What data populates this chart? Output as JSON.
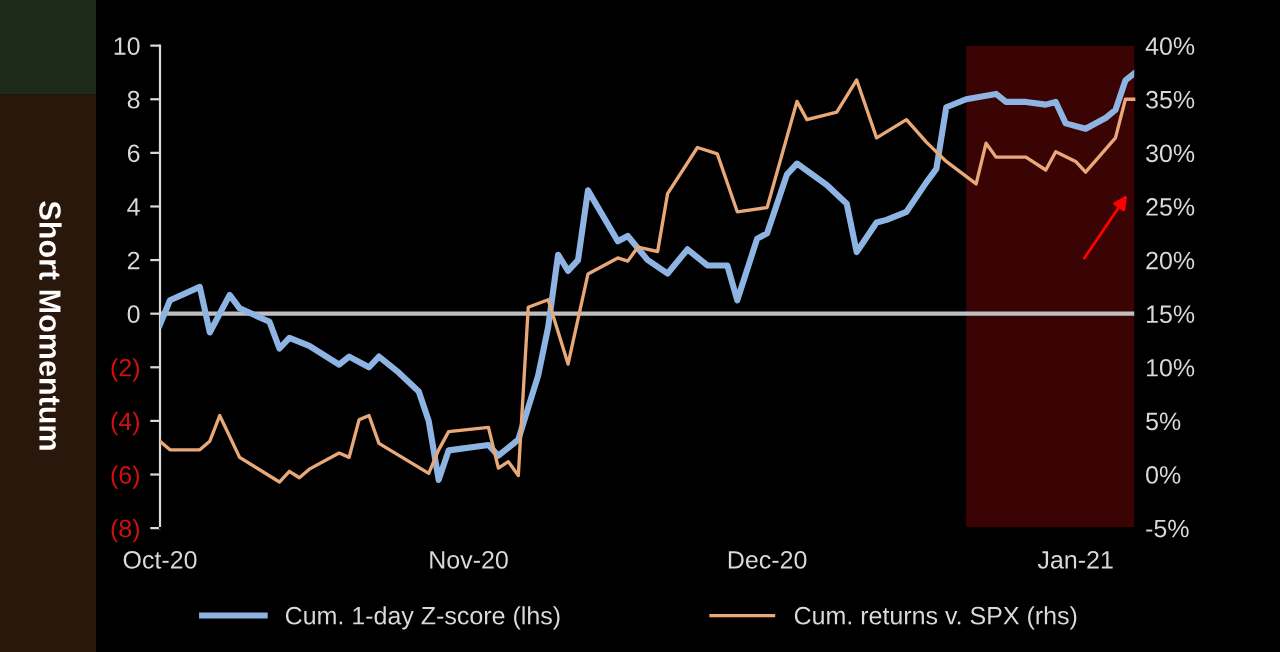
{
  "chart_data": {
    "type": "line",
    "ylabel": "Short Momentum",
    "xlim": [
      "2020-10-01",
      "2021-01-07"
    ],
    "xticks": [
      {
        "value": "2020-10-01",
        "label": "Oct-20"
      },
      {
        "value": "2020-11-01",
        "label": "Nov-20"
      },
      {
        "value": "2020-12-01",
        "label": "Dec-20"
      },
      {
        "value": "2021-01-01",
        "label": "Jan-21"
      }
    ],
    "ylim": [
      -8,
      10
    ],
    "yticks": [
      {
        "value": -8,
        "label": "(8)"
      },
      {
        "value": -6,
        "label": "(6)"
      },
      {
        "value": -4,
        "label": "(4)"
      },
      {
        "value": -2,
        "label": "(2)"
      },
      0,
      2,
      4,
      6,
      8,
      10
    ],
    "y2lim": [
      -5,
      40
    ],
    "y2ticks": [
      {
        "value": -5,
        "label": "-5%"
      },
      {
        "value": 0,
        "label": "0%"
      },
      {
        "value": 5,
        "label": "5%"
      },
      {
        "value": 10,
        "label": "10%"
      },
      {
        "value": 15,
        "label": "15%"
      },
      {
        "value": 20,
        "label": "20%"
      },
      {
        "value": 25,
        "label": "25%"
      },
      {
        "value": 30,
        "label": "30%"
      },
      {
        "value": 35,
        "label": "35%"
      },
      {
        "value": 40,
        "label": "40%"
      }
    ],
    "grid": false,
    "legend": "bottom",
    "line_style": "solid",
    "ref_lines": [
      {
        "axis": "y",
        "value": 0,
        "label": null,
        "color": "#bfbfbf"
      }
    ],
    "bands": [
      {
        "axis": "x",
        "from": "2020-12-21",
        "to": "2021-01-07",
        "label": null,
        "color": "#3a0404"
      }
    ],
    "series": [
      {
        "name": "Cum. 1-day Z-score (lhs)",
        "color": "#8db4e2",
        "axis": "y",
        "x": [
          "2020-10-01",
          "2020-10-02",
          "2020-10-05",
          "2020-10-06",
          "2020-10-08",
          "2020-10-09",
          "2020-10-12",
          "2020-10-13",
          "2020-10-14",
          "2020-10-16",
          "2020-10-19",
          "2020-10-20",
          "2020-10-22",
          "2020-10-23",
          "2020-10-25",
          "2020-10-27",
          "2020-10-28",
          "2020-10-29",
          "2020-10-30",
          "2020-11-03",
          "2020-11-04",
          "2020-11-06",
          "2020-11-08",
          "2020-11-09",
          "2020-11-10",
          "2020-11-11",
          "2020-11-12",
          "2020-11-13",
          "2020-11-16",
          "2020-11-17",
          "2020-11-19",
          "2020-11-21",
          "2020-11-23",
          "2020-11-25",
          "2020-11-27",
          "2020-11-28",
          "2020-11-30",
          "2020-12-01",
          "2020-12-03",
          "2020-12-04",
          "2020-12-07",
          "2020-12-09",
          "2020-12-10",
          "2020-12-12",
          "2020-12-13",
          "2020-12-15",
          "2020-12-17",
          "2020-12-18",
          "2020-12-19",
          "2020-12-21",
          "2020-12-24",
          "2020-12-25",
          "2020-12-27",
          "2020-12-29",
          "2020-12-30",
          "2020-12-31",
          "2021-01-02",
          "2021-01-04",
          "2021-01-05",
          "2021-01-06",
          "2021-01-07"
        ],
        "values": [
          -0.4,
          0.5,
          1.0,
          -0.7,
          0.7,
          0.2,
          -0.3,
          -1.3,
          -0.9,
          -1.2,
          -1.9,
          -1.6,
          -2.0,
          -1.6,
          -2.2,
          -2.9,
          -4.0,
          -6.2,
          -5.1,
          -4.9,
          -5.3,
          -4.7,
          -2.3,
          -0.5,
          2.2,
          1.6,
          2.0,
          4.6,
          2.7,
          2.9,
          2.0,
          1.5,
          2.4,
          1.8,
          1.8,
          0.5,
          2.8,
          3.0,
          5.2,
          5.6,
          4.8,
          4.1,
          2.3,
          3.4,
          3.5,
          3.8,
          4.9,
          5.4,
          7.7,
          8.0,
          8.2,
          7.9,
          7.9,
          7.8,
          7.9,
          7.1,
          6.9,
          7.3,
          7.6,
          8.7,
          9.0
        ]
      },
      {
        "name": "Cum. returns v. SPX (rhs)",
        "color": "#e8a878",
        "axis": "y2",
        "x": [
          "2020-10-01",
          "2020-10-02",
          "2020-10-05",
          "2020-10-06",
          "2020-10-07",
          "2020-10-09",
          "2020-10-13",
          "2020-10-14",
          "2020-10-15",
          "2020-10-16",
          "2020-10-19",
          "2020-10-20",
          "2020-10-21",
          "2020-10-22",
          "2020-10-23",
          "2020-10-28",
          "2020-10-29",
          "2020-10-30",
          "2020-11-03",
          "2020-11-04",
          "2020-11-05",
          "2020-11-06",
          "2020-11-07",
          "2020-11-09",
          "2020-11-11",
          "2020-11-13",
          "2020-11-16",
          "2020-11-17",
          "2020-11-18",
          "2020-11-20",
          "2020-11-21",
          "2020-11-24",
          "2020-11-26",
          "2020-11-28",
          "2020-12-01",
          "2020-12-04",
          "2020-12-05",
          "2020-12-08",
          "2020-12-10",
          "2020-12-12",
          "2020-12-15",
          "2020-12-17",
          "2020-12-19",
          "2020-12-22",
          "2020-12-23",
          "2020-12-24",
          "2020-12-27",
          "2020-12-29",
          "2020-12-30",
          "2021-01-01",
          "2021-01-02",
          "2021-01-05",
          "2021-01-06",
          "2021-01-07"
        ],
        "values": [
          3.1,
          2.3,
          2.3,
          3.1,
          5.5,
          1.6,
          -0.7,
          0.3,
          -0.3,
          0.5,
          2.0,
          1.6,
          5.1,
          5.5,
          2.9,
          0.1,
          2.3,
          4.0,
          4.4,
          0.6,
          1.2,
          -0.1,
          15.6,
          16.3,
          10.3,
          18.7,
          20.2,
          19.9,
          21.2,
          20.8,
          26.2,
          30.5,
          29.9,
          24.5,
          24.9,
          34.8,
          33.1,
          33.8,
          36.8,
          31.4,
          33.1,
          31.0,
          29.2,
          27.1,
          30.9,
          29.6,
          29.6,
          28.4,
          30.1,
          29.2,
          28.2,
          31.4,
          35.0,
          35.0
        ]
      }
    ]
  }
}
